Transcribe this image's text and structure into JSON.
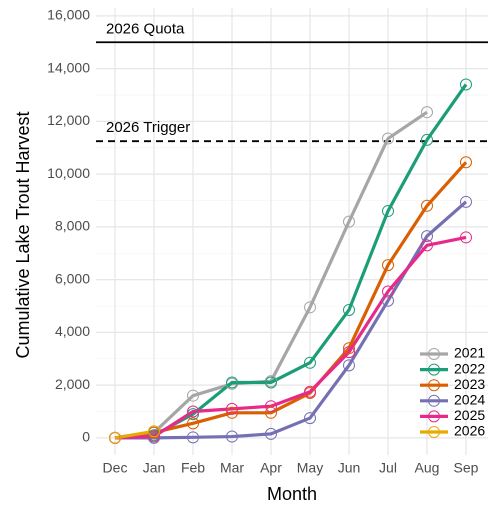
{
  "chart_data": {
    "type": "line",
    "x_label": "Month",
    "y_label": "Cumulative Lake Trout Harvest",
    "categories": [
      "Dec",
      "Jan",
      "Feb",
      "Mar",
      "Apr",
      "May",
      "Jun",
      "Jul",
      "Aug",
      "Sep"
    ],
    "series": [
      {
        "name": "2021",
        "color": "#a6a6a6",
        "values": [
          0,
          200,
          1600,
          2050,
          2150,
          4950,
          8200,
          11350,
          12350,
          null
        ]
      },
      {
        "name": "2022",
        "color": "#1b9e77",
        "values": [
          0,
          100,
          900,
          2100,
          2100,
          2850,
          4850,
          8600,
          11300,
          13400
        ]
      },
      {
        "name": "2023",
        "color": "#d95f02",
        "values": [
          0,
          200,
          550,
          950,
          950,
          1700,
          3400,
          6550,
          8800,
          10450
        ]
      },
      {
        "name": "2024",
        "color": "#7570b3",
        "values": [
          0,
          0,
          20,
          50,
          150,
          750,
          2750,
          5200,
          7650,
          8950
        ]
      },
      {
        "name": "2025",
        "color": "#e7298a",
        "values": [
          0,
          50,
          1000,
          1100,
          1200,
          1750,
          3250,
          5550,
          7300,
          7600
        ]
      },
      {
        "name": "2026",
        "color": "#e6ab02",
        "values": [
          0,
          250,
          null,
          null,
          null,
          null,
          null,
          null,
          null,
          null
        ]
      }
    ],
    "reference_lines": [
      {
        "label": "2026 Quota",
        "value": 15000,
        "dashed": false
      },
      {
        "label": "2026 Trigger",
        "value": 11250,
        "dashed": true
      }
    ],
    "ylim": [
      -650,
      16300
    ],
    "yticks": [
      0,
      {
        "value": 2000,
        "label": "2,000"
      },
      {
        "value": 4000,
        "label": "4,000"
      },
      {
        "value": 6000,
        "label": "6,000"
      },
      {
        "value": 8000,
        "label": "8,000"
      },
      {
        "value": 10000,
        "label": "10,000"
      },
      {
        "value": 12000,
        "label": "12,000"
      },
      {
        "value": 14000,
        "label": "14,000"
      },
      {
        "value": 16000,
        "label": "16,000"
      }
    ],
    "grid": true,
    "legend_position": "bottom-right"
  }
}
